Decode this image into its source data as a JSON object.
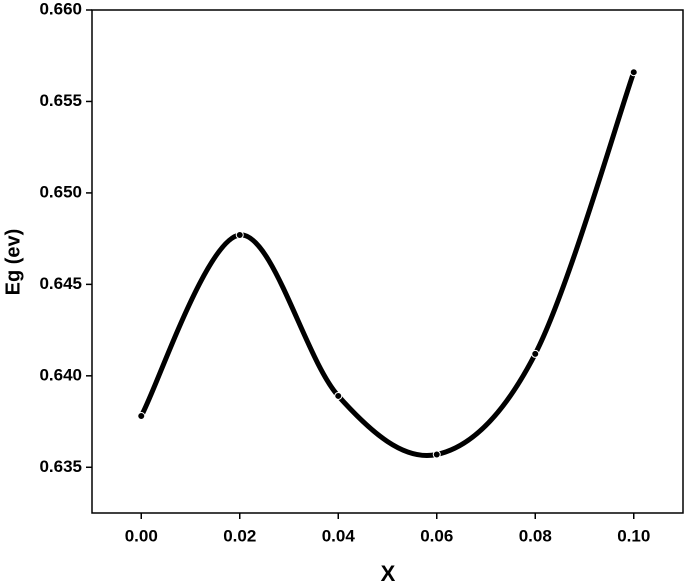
{
  "chart_data": {
    "type": "line",
    "x_label": "X",
    "y_label": "Eg (ev)",
    "x": [
      0.0,
      0.02,
      0.04,
      0.06,
      0.08,
      0.1
    ],
    "series": [
      {
        "color": "#000000",
        "values": [
          0.6378,
          0.6477,
          0.6389,
          0.6357,
          0.6412,
          0.6566
        ]
      }
    ],
    "xlim": [
      -0.01,
      0.11
    ],
    "xticks": [
      {
        "value": 0,
        "label": "0.00"
      },
      {
        "value": 0.02,
        "label": "0.02"
      },
      {
        "value": 0.04,
        "label": "0.04"
      },
      {
        "value": 0.06,
        "label": "0.06"
      },
      {
        "value": 0.08,
        "label": "0.08"
      },
      {
        "value": 0.1,
        "label": "0.10"
      }
    ],
    "ylim": [
      0.6325,
      0.66
    ],
    "yticks": [
      0.635,
      {
        "value": 0.64,
        "label": "0.640"
      },
      0.645,
      {
        "value": 0.65,
        "label": "0.650"
      },
      0.655,
      {
        "value": 0.66,
        "label": "0.660"
      }
    ],
    "smooth": true,
    "markers": true
  }
}
